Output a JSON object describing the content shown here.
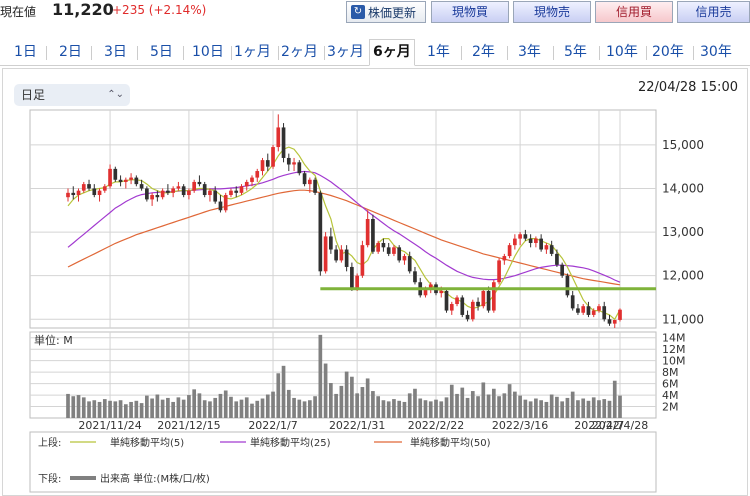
{
  "header": {
    "price_label": "現在値",
    "price": "11,220",
    "change": "+235 (+2.14%)",
    "refresh_label": "株価更新",
    "buttons": [
      "現物買",
      "現物売",
      "信用買",
      "信用売"
    ]
  },
  "periods": [
    "1日",
    "2日",
    "3日",
    "5日",
    "10日",
    "1ヶ月",
    "2ヶ月",
    "3ヶ月",
    "6ヶ月",
    "1年",
    "2年",
    "3年",
    "5年",
    "10年",
    "20年",
    "30年"
  ],
  "active_period": "6ヶ月",
  "controls": {
    "chart_type": "日足",
    "timestamp": "22/04/28 15:00"
  },
  "legend": {
    "upper_label": "上段:",
    "lower_label": "下段:",
    "ma5": "単純移動平均(5)",
    "ma25": "単純移動平均(25)",
    "ma50": "単純移動平均(50)",
    "volume": "出来高 単位:(M株/口/枚)"
  },
  "colors": {
    "up": "#e03030",
    "down": "#303030",
    "ma5": "#b7c43a",
    "ma25": "#a23ad0",
    "ma50": "#e06838",
    "support_line": "#7fb33a",
    "volume_bar": "#808080"
  },
  "chart_data": {
    "type": "candlestick",
    "price_ylabels": [
      "15,000",
      "14,000",
      "13,000",
      "12,000",
      "11,000"
    ],
    "price_ylim": [
      10800,
      15800
    ],
    "volume_unit_label": "単位: M",
    "volume_ylabels": [
      "14M",
      "12M",
      "10M",
      "8M",
      "6M",
      "4M",
      "2M"
    ],
    "volume_ylim": [
      0,
      15
    ],
    "x_labels": [
      "2021/11/24",
      "2021/12/15",
      "2022/1/7",
      "2022/1/31",
      "2022/2/22",
      "2022/3/16",
      "2022/4/7",
      "2022/4/28"
    ],
    "support_level": 11700,
    "ohlc": [
      [
        13800,
        14000,
        13700,
        13900
      ],
      [
        13900,
        14050,
        13750,
        13850
      ],
      [
        13850,
        14000,
        13700,
        13950
      ],
      [
        13950,
        14150,
        13900,
        14100
      ],
      [
        14100,
        14200,
        13950,
        14000
      ],
      [
        14000,
        14100,
        13800,
        13850
      ],
      [
        13850,
        14000,
        13700,
        13950
      ],
      [
        13950,
        14100,
        13900,
        14050
      ],
      [
        14050,
        14550,
        14000,
        14450
      ],
      [
        14450,
        14500,
        14150,
        14200
      ],
      [
        14200,
        14300,
        14050,
        14150
      ],
      [
        14150,
        14250,
        14000,
        14200
      ],
      [
        14200,
        14350,
        14100,
        14250
      ],
      [
        14250,
        14300,
        14050,
        14100
      ],
      [
        14100,
        14200,
        13950,
        14000
      ],
      [
        14000,
        14050,
        13700,
        13750
      ],
      [
        13750,
        13900,
        13600,
        13850
      ],
      [
        13850,
        13950,
        13700,
        13800
      ],
      [
        13800,
        14000,
        13750,
        13950
      ],
      [
        13950,
        14100,
        13850,
        13900
      ],
      [
        13900,
        14050,
        13800,
        14000
      ],
      [
        14000,
        14150,
        13950,
        14050
      ],
      [
        14050,
        14100,
        13800,
        13850
      ],
      [
        13850,
        14000,
        13750,
        13950
      ],
      [
        13950,
        14200,
        13900,
        14150
      ],
      [
        14150,
        14300,
        14050,
        14100
      ],
      [
        14100,
        14150,
        13800,
        13850
      ],
      [
        13850,
        14000,
        13700,
        13950
      ],
      [
        13950,
        14050,
        13650,
        13700
      ],
      [
        13700,
        13850,
        13450,
        13500
      ],
      [
        13500,
        13900,
        13450,
        13850
      ],
      [
        13850,
        14000,
        13800,
        13950
      ],
      [
        13950,
        14050,
        13800,
        13900
      ],
      [
        13900,
        14100,
        13850,
        14050
      ],
      [
        14050,
        14200,
        13950,
        14150
      ],
      [
        14150,
        14300,
        14050,
        14250
      ],
      [
        14250,
        14450,
        14150,
        14400
      ],
      [
        14400,
        14700,
        14300,
        14650
      ],
      [
        14650,
        14800,
        14400,
        14500
      ],
      [
        14500,
        15000,
        14450,
        14950
      ],
      [
        14950,
        15700,
        14850,
        15400
      ],
      [
        15400,
        15500,
        14600,
        14700
      ],
      [
        14700,
        14800,
        14400,
        14550
      ],
      [
        14550,
        14700,
        14400,
        14600
      ],
      [
        14600,
        14650,
        14300,
        14350
      ],
      [
        14350,
        14400,
        14050,
        14100
      ],
      [
        14100,
        14250,
        13900,
        14200
      ],
      [
        14200,
        14250,
        13850,
        13900
      ],
      [
        13900,
        13950,
        12000,
        12100
      ],
      [
        12100,
        13000,
        12050,
        12900
      ],
      [
        12900,
        13100,
        12500,
        12600
      ],
      [
        12600,
        12700,
        12300,
        12350
      ],
      [
        12350,
        12700,
        12300,
        12600
      ],
      [
        12600,
        12700,
        12100,
        12200
      ],
      [
        12200,
        12300,
        11650,
        11700
      ],
      [
        11700,
        12050,
        11650,
        12000
      ],
      [
        12000,
        12800,
        11950,
        12700
      ],
      [
        12700,
        13500,
        12650,
        13300
      ],
      [
        13300,
        13400,
        12500,
        12550
      ],
      [
        12550,
        12800,
        12500,
        12750
      ],
      [
        12750,
        12850,
        12550,
        12650
      ],
      [
        12650,
        12750,
        12450,
        12500
      ],
      [
        12500,
        12700,
        12450,
        12650
      ],
      [
        12650,
        12700,
        12300,
        12350
      ],
      [
        12350,
        12500,
        12250,
        12450
      ],
      [
        12450,
        12550,
        12050,
        12100
      ],
      [
        12100,
        12200,
        11800,
        11850
      ],
      [
        11850,
        11950,
        11500,
        11550
      ],
      [
        11550,
        11750,
        11500,
        11700
      ],
      [
        11700,
        11850,
        11600,
        11800
      ],
      [
        11800,
        11850,
        11550,
        11600
      ],
      [
        11600,
        11750,
        11500,
        11650
      ],
      [
        11650,
        11700,
        11150,
        11200
      ],
      [
        11200,
        11400,
        11100,
        11350
      ],
      [
        11350,
        11550,
        11300,
        11500
      ],
      [
        11500,
        11550,
        11050,
        11100
      ],
      [
        11100,
        11200,
        10950,
        11000
      ],
      [
        11000,
        11450,
        10950,
        11400
      ],
      [
        11400,
        11500,
        11200,
        11300
      ],
      [
        11300,
        11700,
        11250,
        11650
      ],
      [
        11650,
        11750,
        11150,
        11200
      ],
      [
        11200,
        11900,
        11150,
        11850
      ],
      [
        11850,
        12400,
        11800,
        12350
      ],
      [
        12350,
        12500,
        12250,
        12450
      ],
      [
        12450,
        12750,
        12400,
        12700
      ],
      [
        12700,
        12950,
        12600,
        12850
      ],
      [
        12850,
        13000,
        12700,
        12950
      ],
      [
        12950,
        13050,
        12800,
        12850
      ],
      [
        12850,
        12950,
        12650,
        12750
      ],
      [
        12750,
        12900,
        12650,
        12850
      ],
      [
        12850,
        12950,
        12550,
        12600
      ],
      [
        12600,
        12750,
        12500,
        12700
      ],
      [
        12700,
        12800,
        12450,
        12500
      ],
      [
        12500,
        12600,
        12200,
        12250
      ],
      [
        12250,
        12300,
        11950,
        12000
      ],
      [
        12000,
        12050,
        11500,
        11550
      ],
      [
        11550,
        11650,
        11200,
        11250
      ],
      [
        11250,
        11350,
        11100,
        11150
      ],
      [
        11150,
        11350,
        11100,
        11300
      ],
      [
        11300,
        11400,
        11050,
        11100
      ],
      [
        11100,
        11250,
        11050,
        11200
      ],
      [
        11200,
        11350,
        11150,
        11300
      ],
      [
        11300,
        11400,
        10950,
        11000
      ],
      [
        11000,
        11100,
        10850,
        10900
      ],
      [
        10900,
        10950,
        10800,
        10985
      ],
      [
        10985,
        11250,
        10950,
        11220
      ]
    ],
    "ma5": [
      13600,
      13750,
      13850,
      13900,
      13950,
      13980,
      14000,
      14020,
      14100,
      14150,
      14150,
      14180,
      14200,
      14200,
      14180,
      14100,
      14000,
      13950,
      13900,
      13900,
      13920,
      13950,
      13950,
      13950,
      13980,
      14000,
      14000,
      13980,
      13950,
      13850,
      13780,
      13760,
      13800,
      13850,
      13920,
      14000,
      14100,
      14250,
      14400,
      14550,
      14750,
      14900,
      14950,
      14900,
      14750,
      14550,
      14400,
      14300,
      13950,
      13600,
      13300,
      12800,
      12500,
      12550,
      12450,
      12300,
      12250,
      12350,
      12600,
      12750,
      12850,
      12850,
      12700,
      12600,
      12550,
      12450,
      12350,
      12150,
      11950,
      11800,
      11700,
      11650,
      11600,
      11500,
      11450,
      11400,
      11300,
      11250,
      11280,
      11350,
      11400,
      11550,
      11750,
      11950,
      12200,
      12450,
      12650,
      12800,
      12850,
      12850,
      12800,
      12750,
      12700,
      12550,
      12400,
      12200,
      11950,
      11700,
      11450,
      11300,
      11200,
      11200,
      11150,
      11100,
      11000,
      11220
    ],
    "ma25": [
      12650,
      12750,
      12850,
      12950,
      13050,
      13150,
      13250,
      13350,
      13450,
      13550,
      13620,
      13700,
      13760,
      13820,
      13860,
      13880,
      13900,
      13910,
      13920,
      13920,
      13930,
      13940,
      13950,
      13950,
      13960,
      13970,
      13980,
      13990,
      13990,
      13990,
      14000,
      14010,
      14020,
      14040,
      14060,
      14080,
      14100,
      14130,
      14170,
      14210,
      14260,
      14300,
      14330,
      14360,
      14380,
      14390,
      14380,
      14360,
      14300,
      14230,
      14150,
      14060,
      13970,
      13870,
      13770,
      13670,
      13570,
      13470,
      13380,
      13290,
      13200,
      13110,
      13030,
      12960,
      12880,
      12800,
      12720,
      12640,
      12550,
      12470,
      12400,
      12320,
      12240,
      12170,
      12100,
      12050,
      12000,
      11960,
      11940,
      11920,
      11910,
      11910,
      11920,
      11940,
      11970,
      12000,
      12040,
      12080,
      12120,
      12160,
      12190,
      12210,
      12230,
      12240,
      12240,
      12230,
      12220,
      12200,
      12180,
      12150,
      12110,
      12060,
      12010,
      11960,
      11900,
      11850
    ],
    "ma50": [
      12200,
      12260,
      12320,
      12380,
      12440,
      12500,
      12560,
      12620,
      12680,
      12740,
      12790,
      12840,
      12890,
      12940,
      12980,
      13020,
      13060,
      13100,
      13140,
      13180,
      13220,
      13260,
      13300,
      13340,
      13380,
      13420,
      13460,
      13500,
      13530,
      13560,
      13590,
      13620,
      13650,
      13680,
      13710,
      13740,
      13770,
      13800,
      13830,
      13860,
      13890,
      13910,
      13930,
      13950,
      13960,
      13960,
      13950,
      13930,
      13900,
      13870,
      13840,
      13800,
      13760,
      13720,
      13670,
      13620,
      13570,
      13520,
      13470,
      13420,
      13370,
      13320,
      13270,
      13220,
      13170,
      13120,
      13070,
      13020,
      12970,
      12920,
      12870,
      12820,
      12780,
      12740,
      12700,
      12660,
      12620,
      12580,
      12540,
      12500,
      12470,
      12440,
      12410,
      12380,
      12350,
      12320,
      12290,
      12260,
      12230,
      12200,
      12170,
      12140,
      12110,
      12080,
      12050,
      12020,
      11990,
      11960,
      11930,
      11910,
      11890,
      11870,
      11850,
      11830,
      11810,
      11790
    ],
    "volume": [
      4.2,
      3.8,
      4.0,
      3.6,
      2.9,
      3.1,
      2.8,
      3.3,
      3.0,
      2.9,
      3.1,
      2.4,
      2.8,
      3.0,
      2.6,
      3.9,
      3.4,
      4.1,
      3.2,
      3.5,
      2.8,
      3.6,
      3.2,
      4.0,
      5.0,
      4.3,
      3.1,
      2.9,
      3.5,
      4.2,
      4.8,
      3.7,
      2.9,
      3.2,
      3.6,
      2.5,
      3.0,
      3.4,
      4.1,
      4.6,
      7.8,
      9.1,
      4.9,
      3.5,
      3.2,
      2.9,
      3.1,
      3.8,
      14.5,
      9.5,
      6.1,
      4.2,
      5.6,
      8.1,
      7.2,
      4.3,
      5.4,
      6.9,
      4.7,
      3.8,
      3.1,
      2.9,
      3.3,
      3.0,
      2.8,
      4.3,
      5.1,
      3.4,
      3.1,
      2.9,
      3.2,
      2.9,
      3.6,
      5.8,
      4.2,
      5.3,
      3.5,
      4.7,
      3.8,
      6.2,
      4.1,
      5.1,
      3.8,
      4.3,
      5.9,
      4.6,
      3.9,
      3.2,
      2.9,
      3.4,
      3.1,
      2.8,
      4.1,
      3.7,
      2.9,
      3.5,
      4.6,
      3.1,
      3.4,
      3.0,
      3.6,
      3.1,
      3.3,
      3.0,
      6.5,
      3.9
    ]
  }
}
